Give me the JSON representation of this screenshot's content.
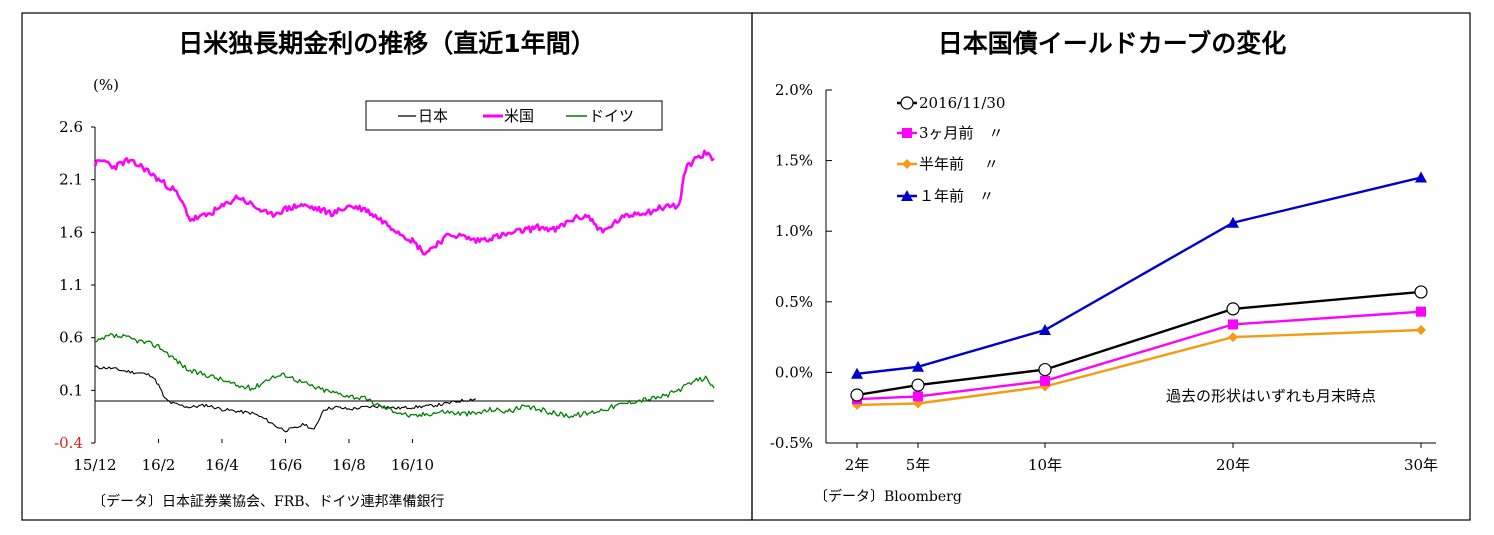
{
  "source_left": "〔データ〕日本証券業協会、FRB、ドイツ連邦準備銀行",
  "source_right": "〔データ〕Bloomberg",
  "colors": {
    "japan": "#000000",
    "us": "#ff00ff",
    "germany": "#008000",
    "current": "#000000",
    "m3": "#ff00ff",
    "m6": "#f39c12",
    "y1": "#0000cc"
  },
  "chart_data": [
    {
      "type": "line",
      "title": "日米独長期金利の推移（直近1年間）",
      "ylabel": "(%)",
      "ylim": [
        -0.4,
        2.6
      ],
      "yticks": [
        "2.6",
        "2.1",
        "1.6",
        "1.1",
        "0.6",
        "0.1",
        "-0.4"
      ],
      "xticks": [
        "15/12",
        "16/2",
        "16/4",
        "16/6",
        "16/8",
        "16/10"
      ],
      "legend": [
        "日本",
        "米国",
        "ドイツ"
      ],
      "legend_position": "top-right",
      "series": [
        {
          "name": "日本",
          "points": [
            [
              0,
              0.32
            ],
            [
              0.5,
              0.31
            ],
            [
              1,
              0.28
            ],
            [
              1.5,
              0.26
            ],
            [
              1.8,
              0.24
            ],
            [
              2,
              0.15
            ],
            [
              2.2,
              0.02
            ],
            [
              2.4,
              -0.02
            ],
            [
              2.8,
              -0.05
            ],
            [
              3,
              -0.06
            ],
            [
              3.5,
              -0.04
            ],
            [
              4,
              -0.08
            ],
            [
              4.5,
              -0.1
            ],
            [
              5,
              -0.12
            ],
            [
              5.4,
              -0.18
            ],
            [
              5.7,
              -0.24
            ],
            [
              6,
              -0.28
            ],
            [
              6.3,
              -0.26
            ],
            [
              6.6,
              -0.22
            ],
            [
              6.9,
              -0.28
            ],
            [
              7.2,
              -0.08
            ],
            [
              7.6,
              -0.06
            ],
            [
              8,
              -0.08
            ],
            [
              8.5,
              -0.06
            ],
            [
              9,
              -0.05
            ],
            [
              9.5,
              -0.07
            ],
            [
              10,
              -0.06
            ],
            [
              10.5,
              -0.05
            ],
            [
              11,
              -0.03
            ],
            [
              11.5,
              0.0
            ],
            [
              12,
              0.02
            ]
          ]
        },
        {
          "name": "米国",
          "points": [
            [
              0,
              2.25
            ],
            [
              0.3,
              2.28
            ],
            [
              0.6,
              2.22
            ],
            [
              1,
              2.28
            ],
            [
              1.5,
              2.22
            ],
            [
              2,
              2.1
            ],
            [
              2.5,
              2.0
            ],
            [
              2.8,
              1.85
            ],
            [
              3,
              1.72
            ],
            [
              3.5,
              1.76
            ],
            [
              4,
              1.84
            ],
            [
              4.5,
              1.94
            ],
            [
              5,
              1.85
            ],
            [
              5.5,
              1.76
            ],
            [
              6,
              1.82
            ],
            [
              6.5,
              1.86
            ],
            [
              7,
              1.82
            ],
            [
              7.5,
              1.78
            ],
            [
              8,
              1.85
            ],
            [
              8.5,
              1.82
            ],
            [
              9,
              1.72
            ],
            [
              9.5,
              1.62
            ],
            [
              10,
              1.52
            ],
            [
              10.4,
              1.4
            ],
            [
              10.8,
              1.5
            ],
            [
              11.2,
              1.58
            ],
            [
              11.6,
              1.56
            ],
            [
              12,
              1.52
            ],
            [
              12.5,
              1.55
            ],
            [
              13,
              1.58
            ],
            [
              13.5,
              1.62
            ],
            [
              14,
              1.65
            ],
            [
              14.5,
              1.62
            ],
            [
              15,
              1.72
            ],
            [
              15.5,
              1.76
            ],
            [
              16,
              1.6
            ],
            [
              16.5,
              1.72
            ],
            [
              17,
              1.78
            ],
            [
              17.5,
              1.8
            ],
            [
              18,
              1.85
            ],
            [
              18.4,
              1.85
            ],
            [
              18.6,
              2.2
            ],
            [
              18.9,
              2.3
            ],
            [
              19.2,
              2.35
            ],
            [
              19.5,
              2.3
            ]
          ]
        },
        {
          "name": "ドイツ",
          "points": [
            [
              0,
              0.55
            ],
            [
              0.5,
              0.62
            ],
            [
              1,
              0.6
            ],
            [
              1.5,
              0.56
            ],
            [
              2,
              0.52
            ],
            [
              2.5,
              0.4
            ],
            [
              3,
              0.28
            ],
            [
              3.5,
              0.25
            ],
            [
              4,
              0.2
            ],
            [
              4.5,
              0.14
            ],
            [
              5,
              0.12
            ],
            [
              5.5,
              0.22
            ],
            [
              6,
              0.25
            ],
            [
              6.5,
              0.18
            ],
            [
              7,
              0.12
            ],
            [
              7.5,
              0.08
            ],
            [
              8,
              0.05
            ],
            [
              8.5,
              0.02
            ],
            [
              9,
              -0.05
            ],
            [
              9.5,
              -0.1
            ],
            [
              10,
              -0.15
            ],
            [
              10.5,
              -0.12
            ],
            [
              11,
              -0.1
            ],
            [
              11.5,
              -0.12
            ],
            [
              12,
              -0.12
            ],
            [
              12.5,
              -0.08
            ],
            [
              13,
              -0.1
            ],
            [
              13.5,
              -0.06
            ],
            [
              14,
              -0.08
            ],
            [
              14.5,
              -0.12
            ],
            [
              15,
              -0.14
            ],
            [
              15.5,
              -0.12
            ],
            [
              16,
              -0.08
            ],
            [
              16.5,
              -0.04
            ],
            [
              17,
              0.0
            ],
            [
              17.5,
              0.02
            ],
            [
              18,
              0.05
            ],
            [
              18.5,
              0.12
            ],
            [
              19,
              0.2
            ],
            [
              19.3,
              0.22
            ],
            [
              19.5,
              0.12
            ]
          ]
        }
      ]
    },
    {
      "type": "line",
      "title": "日本国債イールドカーブの変化",
      "categories": [
        "2年",
        "5年",
        "10年",
        "20年",
        "30年"
      ],
      "ylim": [
        -0.5,
        2.0
      ],
      "yticks": [
        "2.0%",
        "1.5%",
        "1.0%",
        "0.5%",
        "0.0%",
        "-0.5%"
      ],
      "annotation": "過去の形状はいずれも月末時点",
      "legend_position": "top-left",
      "series": [
        {
          "name": "2016/11/30",
          "marker": "circle-open",
          "values": [
            -0.16,
            -0.09,
            0.02,
            0.45,
            0.57
          ]
        },
        {
          "name": "3ヶ月前　〃",
          "marker": "square",
          "values": [
            -0.19,
            -0.17,
            -0.06,
            0.34,
            0.43
          ]
        },
        {
          "name": "半年前　 〃",
          "marker": "diamond",
          "values": [
            -0.23,
            -0.22,
            -0.1,
            0.25,
            0.3
          ]
        },
        {
          "name": "１年前　〃",
          "marker": "triangle",
          "values": [
            -0.01,
            0.04,
            0.3,
            1.06,
            1.38
          ]
        }
      ]
    }
  ]
}
